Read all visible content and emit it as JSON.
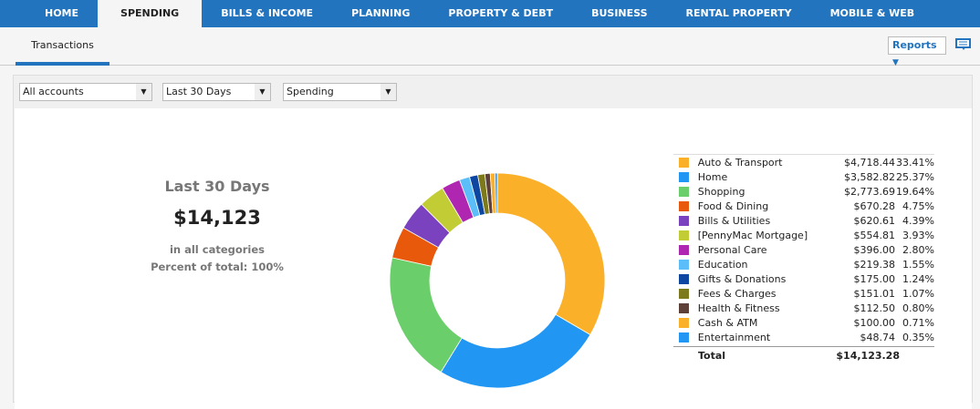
{
  "nav": {
    "tabs": [
      "HOME",
      "SPENDING",
      "BILLS & INCOME",
      "PLANNING",
      "PROPERTY & DEBT",
      "BUSINESS",
      "RENTAL PROPERTY",
      "MOBILE & WEB"
    ],
    "active": "SPENDING"
  },
  "subnav": {
    "tab": "Transactions",
    "reports": "Reports"
  },
  "filters": {
    "accounts": "All accounts",
    "period": "Last 30 Days",
    "type": "Spending"
  },
  "summary": {
    "title": "Last 30 Days",
    "amount": "$14,123",
    "line1": "in all categories",
    "line2": "Percent of total: 100%"
  },
  "chart_data": {
    "type": "pie",
    "style": "donut",
    "categories": [
      {
        "name": "Auto & Transport",
        "amount": "$4,718.44",
        "value": 4718.44,
        "percent": "33.41%",
        "color": "#fbb02a"
      },
      {
        "name": "Home",
        "amount": "$3,582.82",
        "value": 3582.82,
        "percent": "25.37%",
        "color": "#2196f3"
      },
      {
        "name": "Shopping",
        "amount": "$2,773.69",
        "value": 2773.69,
        "percent": "19.64%",
        "color": "#6acf6a"
      },
      {
        "name": "Food & Dining",
        "amount": "$670.28",
        "value": 670.28,
        "percent": "4.75%",
        "color": "#e8590c"
      },
      {
        "name": "Bills & Utilities",
        "amount": "$620.61",
        "value": 620.61,
        "percent": "4.39%",
        "color": "#7b42c0"
      },
      {
        "name": "[PennyMac Mortgage]",
        "amount": "$554.81",
        "value": 554.81,
        "percent": "3.93%",
        "color": "#c2cc35"
      },
      {
        "name": "Personal Care",
        "amount": "$396.00",
        "value": 396.0,
        "percent": "2.80%",
        "color": "#af27b0"
      },
      {
        "name": "Education",
        "amount": "$219.38",
        "value": 219.38,
        "percent": "1.55%",
        "color": "#5bbef8"
      },
      {
        "name": "Gifts & Donations",
        "amount": "$175.00",
        "value": 175.0,
        "percent": "1.24%",
        "color": "#0d47a1"
      },
      {
        "name": "Fees & Charges",
        "amount": "$151.01",
        "value": 151.01,
        "percent": "1.07%",
        "color": "#7d7a1c"
      },
      {
        "name": "Health & Fitness",
        "amount": "$112.50",
        "value": 112.5,
        "percent": "0.80%",
        "color": "#5d4037"
      },
      {
        "name": "Cash & ATM",
        "amount": "$100.00",
        "value": 100.0,
        "percent": "0.71%",
        "color": "#fbb02a"
      },
      {
        "name": "Entertainment",
        "amount": "$48.74",
        "value": 48.74,
        "percent": "0.35%",
        "color": "#2196f3"
      }
    ],
    "total_label": "Total",
    "total": "$14,123.28"
  }
}
